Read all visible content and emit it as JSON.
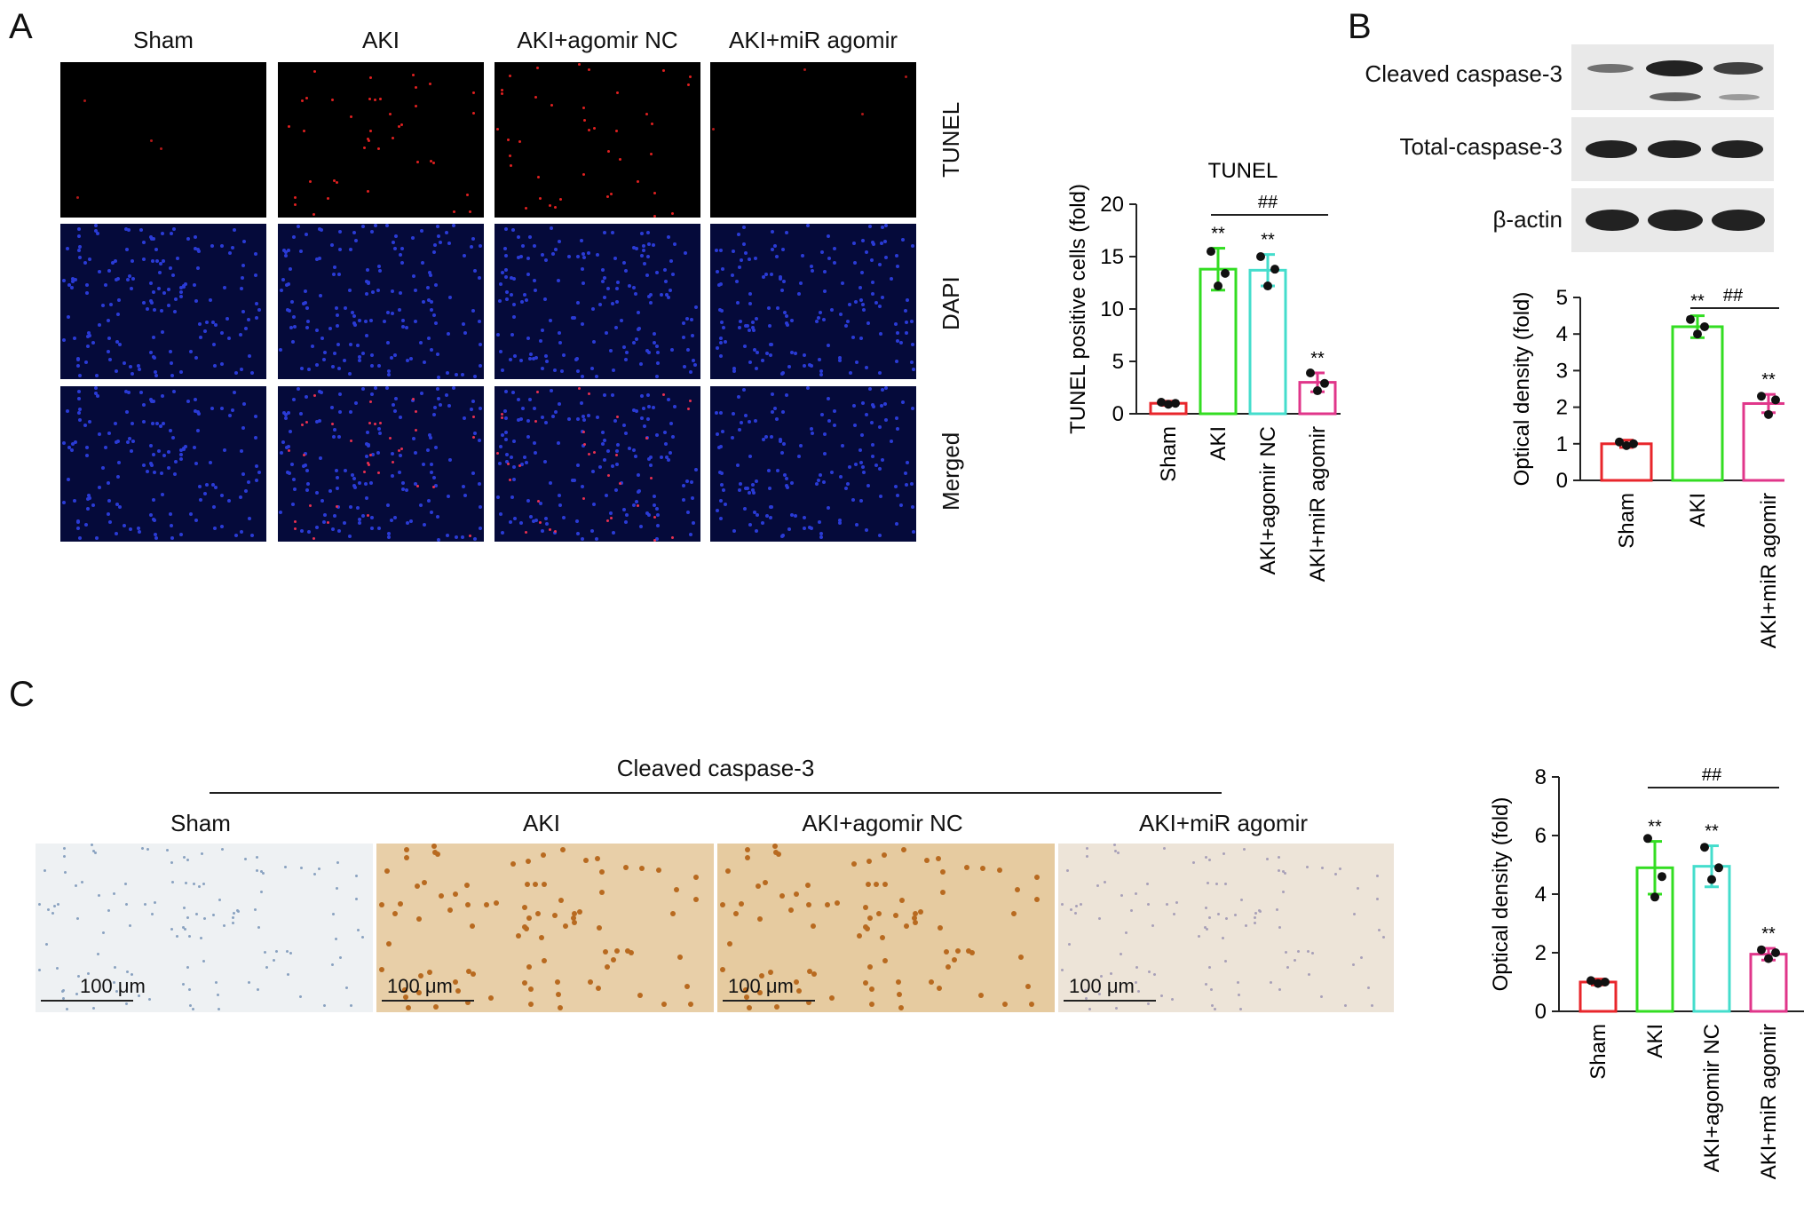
{
  "panels": {
    "A": {
      "label": "A",
      "columns": [
        "Sham",
        "AKI",
        "AKI+agomir NC",
        "AKI+miR agomir"
      ],
      "rows": [
        "TUNEL",
        "DAPI",
        "Merged"
      ]
    },
    "B": {
      "label": "B",
      "blot_rows": [
        "Cleaved caspase-3",
        "Total-caspase-3",
        "β-actin"
      ]
    },
    "C": {
      "label": "C",
      "header": "Cleaved caspase-3",
      "columns": [
        "Sham",
        "AKI",
        "AKI+agomir NC",
        "AKI+miR agomir"
      ],
      "scale_bar": "100 μm"
    }
  },
  "colors": {
    "Sham": "#e8262b",
    "AKI": "#33dd22",
    "AKI+agomir NC": "#44ddcc",
    "AKI+miR agomir": "#e0368a"
  },
  "chart_data": [
    {
      "id": "tunel",
      "type": "bar",
      "title": "TUNEL",
      "ylabel": "TUNEL positive cells (fold)",
      "categories": [
        "Sham",
        "AKI",
        "AKI+agomir NC",
        "AKI+miR agomir"
      ],
      "values": [
        1.0,
        13.8,
        13.7,
        3.0
      ],
      "errors": [
        0.2,
        2.0,
        1.5,
        0.9
      ],
      "points": [
        [
          1.1,
          0.9,
          1.0
        ],
        [
          15.5,
          12.2,
          13.4
        ],
        [
          15.0,
          12.2,
          13.8
        ],
        [
          3.9,
          2.2,
          2.9
        ]
      ],
      "annotations": [
        "",
        "**",
        "**",
        "**"
      ],
      "significance": {
        "label": "##",
        "from": "AKI",
        "to": "AKI+miR agomir"
      },
      "ylim": [
        0,
        20
      ],
      "yticks": [
        0,
        5,
        10,
        15,
        20
      ]
    },
    {
      "id": "wb",
      "type": "bar",
      "title": "",
      "ylabel": "Optical density (fold)",
      "categories": [
        "Sham",
        "AKI",
        "AKI+miR agomir"
      ],
      "values": [
        1.0,
        4.2,
        2.1
      ],
      "errors": [
        0.1,
        0.3,
        0.25
      ],
      "points": [
        [
          1.05,
          0.95,
          1.0
        ],
        [
          4.4,
          4.0,
          4.2
        ],
        [
          2.3,
          1.8,
          2.2
        ]
      ],
      "annotations": [
        "",
        "**",
        "**"
      ],
      "significance": {
        "label": "##",
        "from": "AKI",
        "to": "AKI+miR agomir"
      },
      "ylim": [
        0,
        5
      ],
      "yticks": [
        0,
        1,
        2,
        3,
        4,
        5
      ]
    },
    {
      "id": "ihc",
      "type": "bar",
      "title": "",
      "ylabel": "Optical density (fold)",
      "categories": [
        "Sham",
        "AKI",
        "AKI+agomir NC",
        "AKI+miR agomir"
      ],
      "values": [
        1.0,
        4.9,
        4.95,
        1.95
      ],
      "errors": [
        0.1,
        0.9,
        0.7,
        0.2
      ],
      "points": [
        [
          1.05,
          0.95,
          1.0
        ],
        [
          5.9,
          3.9,
          4.6
        ],
        [
          5.6,
          4.5,
          4.9
        ],
        [
          2.1,
          1.8,
          2.0
        ]
      ],
      "annotations": [
        "",
        "**",
        "**",
        "**"
      ],
      "significance": {
        "label": "##",
        "from": "AKI",
        "to": "AKI+miR agomir"
      },
      "ylim": [
        0,
        8
      ],
      "yticks": [
        0,
        2,
        4,
        6,
        8
      ]
    }
  ]
}
